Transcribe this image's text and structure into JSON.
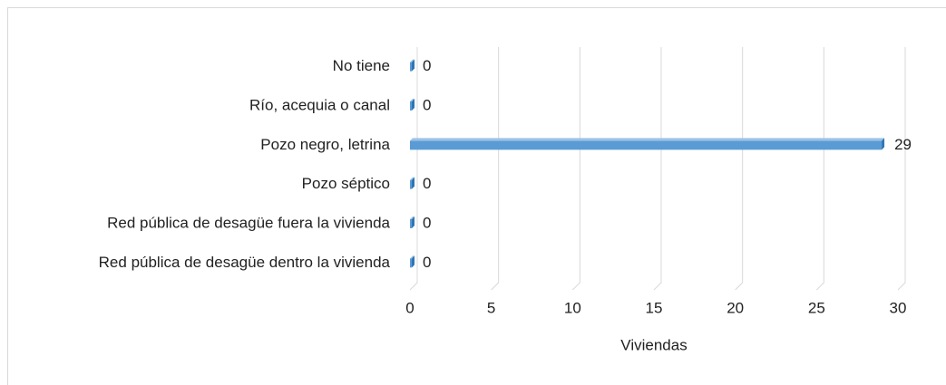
{
  "chart_data": {
    "type": "hbar",
    "categories": [
      "No tiene",
      "Río, acequia o canal",
      "Pozo negro, letrina",
      "Pozo séptico",
      "Red pública de desagüe fuera la vivienda",
      "Red pública de desagüe dentro la vivienda"
    ],
    "values": [
      0,
      0,
      29,
      0,
      0,
      0
    ],
    "color": "#5b9bd5",
    "xlabel": "Viviendas",
    "xlim": [
      0,
      30
    ],
    "xticks": [
      0,
      5,
      10,
      15,
      20,
      25,
      30
    ],
    "grid": true
  }
}
